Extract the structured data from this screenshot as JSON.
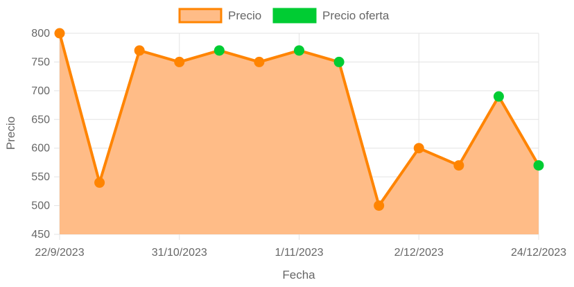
{
  "chart_data": {
    "type": "line",
    "xlabel": "Fecha",
    "ylabel": "Precio",
    "ylim": [
      450,
      800
    ],
    "y_ticks": [
      450,
      500,
      550,
      600,
      650,
      700,
      750,
      800
    ],
    "x_tick_labels": [
      "22/9/2023",
      "31/10/2023",
      "1/11/2023",
      "2/12/2023",
      "24/12/2023"
    ],
    "x_tick_indices": [
      0,
      3,
      6,
      9,
      12
    ],
    "grid": true,
    "legend_position": "top-center",
    "legend": [
      {
        "name": "Precio",
        "color": "#ff8400",
        "fill": "#ffbc87"
      },
      {
        "name": "Precio oferta",
        "color": "#00cc33"
      }
    ],
    "series": [
      {
        "name": "Precio",
        "values": [
          800,
          540,
          770,
          750,
          770,
          750,
          770,
          750,
          500,
          600,
          570,
          690,
          570
        ],
        "point_type": [
          "regular",
          "regular",
          "regular",
          "regular",
          "oferta",
          "regular",
          "oferta",
          "oferta",
          "regular",
          "regular",
          "regular",
          "oferta",
          "oferta"
        ]
      }
    ],
    "colors": {
      "line": "#ff8400",
      "area": "#ffbc87",
      "oferta": "#00cc33",
      "grid": "#e3e3e3"
    }
  }
}
